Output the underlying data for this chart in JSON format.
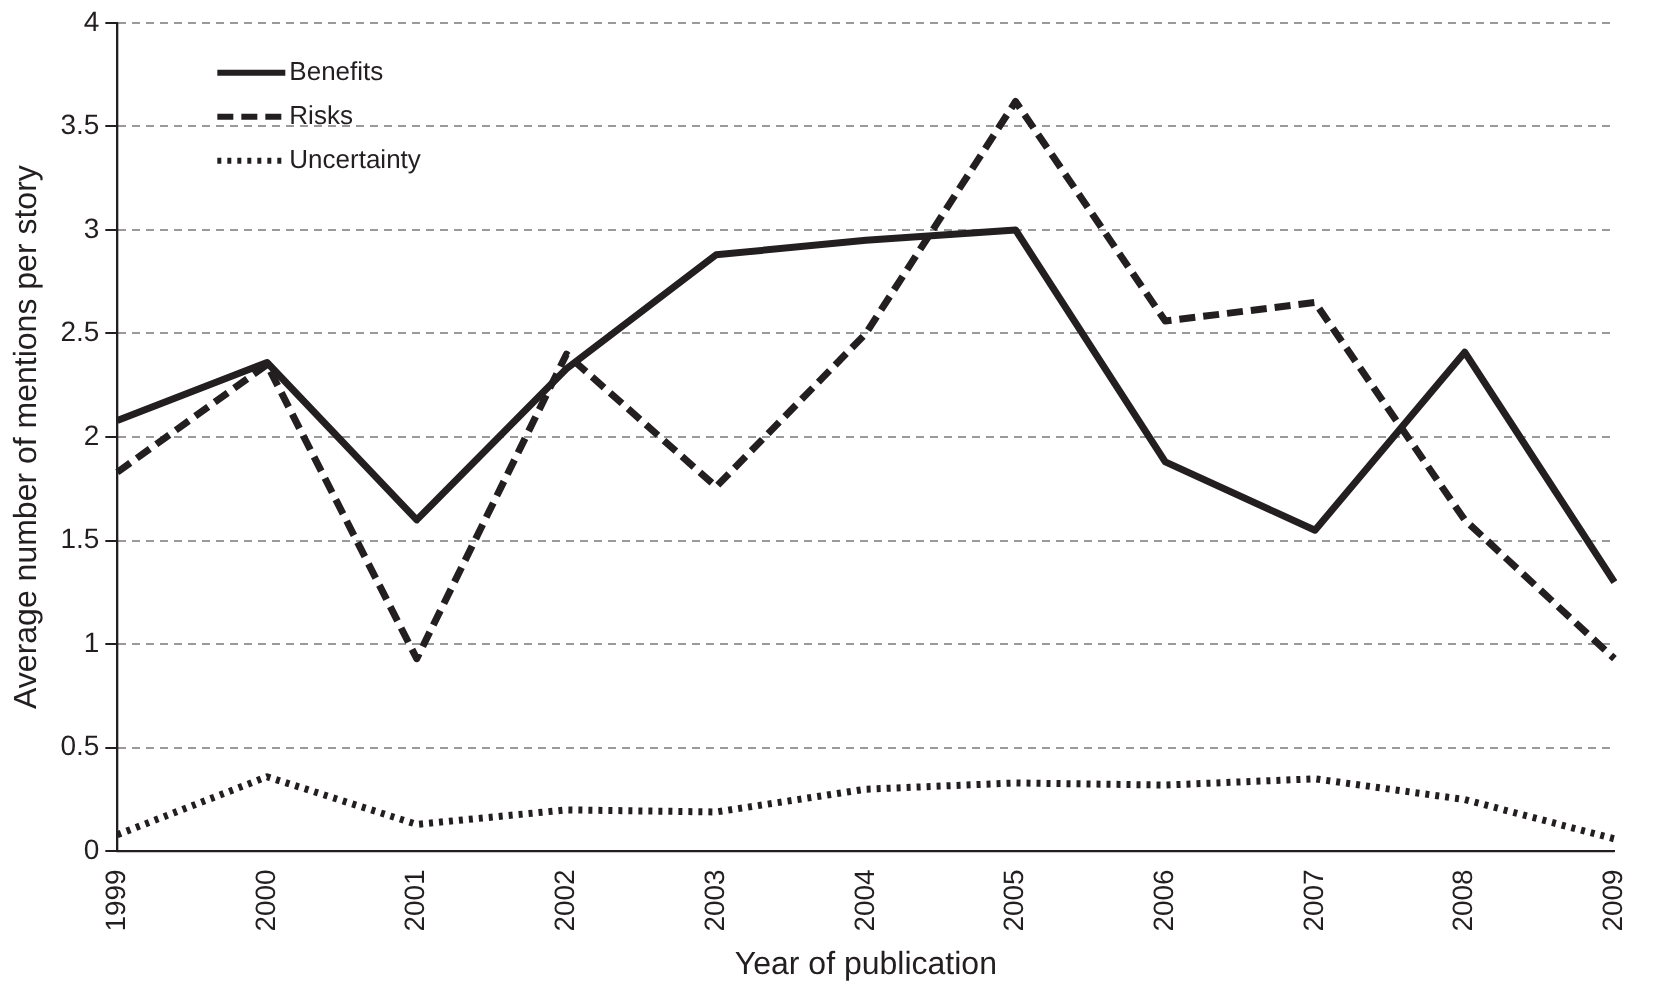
{
  "chart_data": {
    "type": "line",
    "xlabel": "Year of publication",
    "ylabel": "Average number of mentions per story",
    "categories": [
      "1999",
      "2000",
      "2001",
      "2002",
      "2003",
      "2004",
      "2005",
      "2006",
      "2007",
      "2008",
      "2009"
    ],
    "series": [
      {
        "name": "Benefits",
        "color": "#231f20",
        "line_style": "solid",
        "values": [
          2.08,
          2.36,
          1.6,
          2.33,
          2.88,
          2.95,
          3.0,
          1.88,
          1.55,
          2.41,
          1.3
        ]
      },
      {
        "name": "Risks",
        "color": "#231f20",
        "line_style": "dashed",
        "values": [
          1.83,
          2.35,
          0.93,
          2.4,
          1.76,
          2.5,
          3.62,
          2.56,
          2.65,
          1.6,
          0.93
        ]
      },
      {
        "name": "Uncertainty",
        "color": "#231f20",
        "line_style": "dotted",
        "values": [
          0.08,
          0.36,
          0.13,
          0.2,
          0.19,
          0.3,
          0.33,
          0.32,
          0.35,
          0.25,
          0.06
        ]
      }
    ],
    "ylim": [
      0,
      4
    ],
    "yticks": [
      0,
      0.5,
      1,
      1.5,
      2,
      2.5,
      3,
      3.5,
      4
    ],
    "grid": "y",
    "legend": "top left",
    "marker": "none"
  }
}
